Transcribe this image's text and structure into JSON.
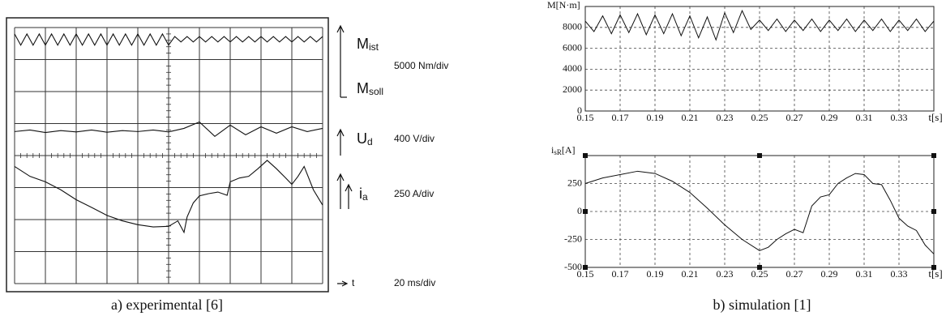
{
  "chart_data": [
    {
      "type": "scope",
      "caption": "a) experimental [6]",
      "xlim": [
        0,
        10
      ],
      "ylim": [
        0,
        8
      ],
      "xticks": [
        0,
        1,
        2,
        3,
        4,
        5,
        6,
        7,
        8,
        9,
        10
      ],
      "yticks": [
        0,
        1,
        2,
        3,
        4,
        5,
        6,
        7,
        8
      ],
      "grid": true,
      "annotations": [
        {
          "text": "M",
          "sub": "ist"
        },
        {
          "text": "M",
          "sub": "soll"
        },
        {
          "text": "5000 Nm/div"
        },
        {
          "text": "U",
          "sub": "d"
        },
        {
          "text": "400 V/div"
        },
        {
          "text": "i",
          "sub": "a"
        },
        {
          "text": "250 A/div"
        },
        {
          "text": "t"
        },
        {
          "text": "20 ms/div"
        }
      ],
      "series": [
        {
          "color": "#111111",
          "x": [
            0,
            0.2,
            0.4,
            0.6,
            0.8,
            1,
            1.2,
            1.4,
            1.6,
            1.8,
            2,
            2.2,
            2.4,
            2.6,
            2.8,
            3,
            3.2,
            3.4,
            3.6,
            3.8,
            4,
            4.2,
            4.4,
            4.6,
            4.8,
            5,
            5.2,
            5.4,
            5.6,
            5.8,
            6,
            6.2,
            6.4,
            6.6,
            6.8,
            7,
            7.2,
            7.4,
            7.6,
            7.8,
            8,
            8.2,
            8.4,
            8.6,
            8.8,
            9,
            9.2,
            9.4,
            9.6,
            9.8,
            10
          ],
          "values": [
            7.8,
            7.45,
            7.8,
            7.45,
            7.8,
            7.45,
            7.8,
            7.45,
            7.8,
            7.45,
            7.8,
            7.45,
            7.8,
            7.45,
            7.8,
            7.45,
            7.8,
            7.45,
            7.8,
            7.45,
            7.8,
            7.45,
            7.8,
            7.45,
            7.8,
            7.45,
            7.72,
            7.55,
            7.72,
            7.55,
            7.72,
            7.55,
            7.72,
            7.55,
            7.72,
            7.55,
            7.72,
            7.55,
            7.72,
            7.55,
            7.72,
            7.55,
            7.72,
            7.55,
            7.72,
            7.55,
            7.72,
            7.55,
            7.72,
            7.55,
            7.72
          ]
        },
        {
          "color": "#111111",
          "x": [
            0,
            0.5,
            1,
            1.5,
            2,
            2.5,
            3,
            3.5,
            4,
            4.5,
            5,
            5.5,
            6,
            6.5,
            7,
            7.5,
            8,
            8.5,
            9,
            9.5,
            10
          ],
          "values": [
            4.75,
            4.8,
            4.72,
            4.78,
            4.74,
            4.8,
            4.73,
            4.78,
            4.75,
            4.8,
            4.74,
            4.85,
            5.05,
            4.6,
            4.95,
            4.65,
            4.9,
            4.7,
            4.9,
            4.75,
            4.85
          ]
        },
        {
          "color": "#111111",
          "x": [
            0,
            0.5,
            1,
            1.5,
            2,
            2.5,
            3,
            3.5,
            4,
            4.5,
            5,
            5.3,
            5.5,
            5.6,
            5.8,
            6,
            6.3,
            6.6,
            6.9,
            7,
            7.3,
            7.6,
            7.9,
            8.2,
            8.5,
            8.8,
            9,
            9.2,
            9.4,
            9.7,
            10
          ],
          "values": [
            3.66,
            3.35,
            3.18,
            2.93,
            2.62,
            2.38,
            2.13,
            1.96,
            1.84,
            1.77,
            1.79,
            1.96,
            1.6,
            2.08,
            2.52,
            2.74,
            2.81,
            2.86,
            2.76,
            3.18,
            3.3,
            3.35,
            3.59,
            3.85,
            3.59,
            3.3,
            3.1,
            3.35,
            3.66,
            2.93,
            2.45
          ]
        }
      ]
    },
    {
      "type": "line",
      "ylabel": "M[N·m]",
      "xlabel": "t[s]",
      "xlim": [
        0.15,
        0.35
      ],
      "ylim": [
        0,
        10000
      ],
      "xticks": [
        0.15,
        0.17,
        0.19,
        0.21,
        0.23,
        0.25,
        0.27,
        0.29,
        0.31,
        0.33
      ],
      "yticks": [
        0,
        2000,
        4000,
        6000,
        8000
      ],
      "grid": true,
      "series": [
        {
          "color": "#111111",
          "x": [
            0.15,
            0.155,
            0.16,
            0.165,
            0.17,
            0.175,
            0.18,
            0.185,
            0.19,
            0.195,
            0.2,
            0.205,
            0.21,
            0.215,
            0.22,
            0.225,
            0.23,
            0.235,
            0.24,
            0.245,
            0.25,
            0.255,
            0.26,
            0.265,
            0.27,
            0.275,
            0.28,
            0.285,
            0.29,
            0.295,
            0.3,
            0.305,
            0.31,
            0.315,
            0.32,
            0.325,
            0.33,
            0.335,
            0.34,
            0.345,
            0.35
          ],
          "values": [
            8600,
            7600,
            9100,
            7400,
            9200,
            7500,
            9300,
            7300,
            9200,
            7400,
            9300,
            7200,
            9100,
            7000,
            9000,
            6800,
            9400,
            7500,
            9600,
            7800,
            8700,
            7700,
            8800,
            7600,
            8700,
            7700,
            8800,
            7600,
            8700,
            7700,
            8800,
            7600,
            8700,
            7700,
            8800,
            7600,
            8700,
            7700,
            8800,
            7600,
            8600
          ]
        }
      ],
      "caption": "b) simulation [1]"
    },
    {
      "type": "line",
      "ylabel": "i",
      "ylabel_sub": "sR",
      "ylabel_unit": "[A]",
      "xlabel": "t[s]",
      "xlim": [
        0.15,
        0.35
      ],
      "ylim": [
        -500,
        500
      ],
      "xticks": [
        0.15,
        0.17,
        0.19,
        0.21,
        0.23,
        0.25,
        0.27,
        0.29,
        0.31,
        0.33
      ],
      "yticks": [
        -500,
        -250,
        0,
        250
      ],
      "grid": true,
      "series": [
        {
          "color": "#111111",
          "x": [
            0.15,
            0.16,
            0.17,
            0.18,
            0.19,
            0.2,
            0.21,
            0.22,
            0.23,
            0.24,
            0.25,
            0.255,
            0.26,
            0.265,
            0.27,
            0.275,
            0.28,
            0.285,
            0.29,
            0.295,
            0.3,
            0.305,
            0.31,
            0.315,
            0.32,
            0.325,
            0.33,
            0.335,
            0.34,
            0.345,
            0.35
          ],
          "values": [
            250,
            300,
            330,
            360,
            340,
            270,
            170,
            30,
            -120,
            -250,
            -350,
            -320,
            -250,
            -200,
            -160,
            -190,
            50,
            130,
            150,
            250,
            300,
            340,
            330,
            250,
            240,
            100,
            -60,
            -130,
            -170,
            -300,
            -380
          ]
        }
      ]
    }
  ]
}
